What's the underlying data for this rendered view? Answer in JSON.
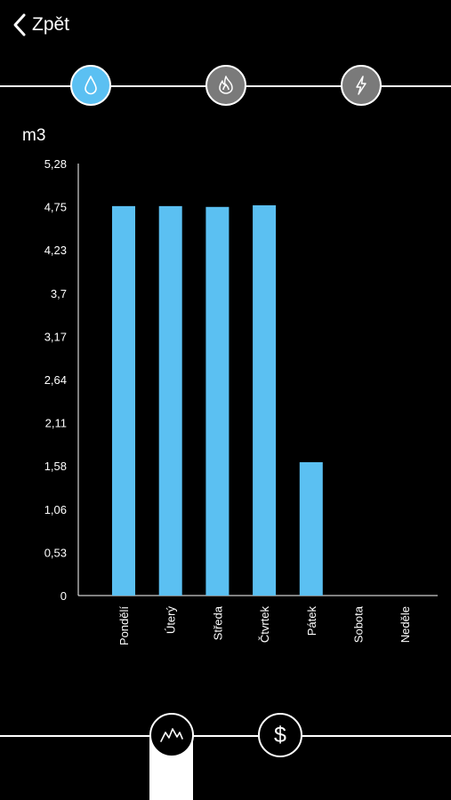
{
  "header": {
    "back_label": "Zpět",
    "back_icon": "chevron-left-icon"
  },
  "categories": [
    {
      "name": "water",
      "icon": "water-drop-icon",
      "active": true
    },
    {
      "name": "gas",
      "icon": "flame-icon",
      "active": false
    },
    {
      "name": "electricity",
      "icon": "lightning-icon",
      "active": false
    }
  ],
  "bottom_tabs": [
    {
      "name": "consumption",
      "icon": "line-graph-icon",
      "active": true
    },
    {
      "name": "cost",
      "icon": "dollar-icon",
      "symbol": "$",
      "active": false
    }
  ],
  "colors": {
    "accent": "#5bc0f2",
    "inactive_icon": "#7a7a7a",
    "background": "#000000"
  },
  "chart_data": {
    "type": "bar",
    "ylabel": "m3",
    "categories": [
      "Pondělí",
      "Úterý",
      "Středa",
      "Čtvrtek",
      "Pátek",
      "Sobota",
      "Neděle"
    ],
    "values": [
      4.76,
      4.76,
      4.75,
      4.77,
      1.63,
      0,
      0
    ],
    "yticks": [
      "0",
      "0,53",
      "1,06",
      "1,58",
      "2,11",
      "2,64",
      "3,17",
      "3,7",
      "4,23",
      "4,75",
      "5,28"
    ],
    "ylim": [
      0,
      5.28
    ],
    "grid": false,
    "legend": "none"
  }
}
